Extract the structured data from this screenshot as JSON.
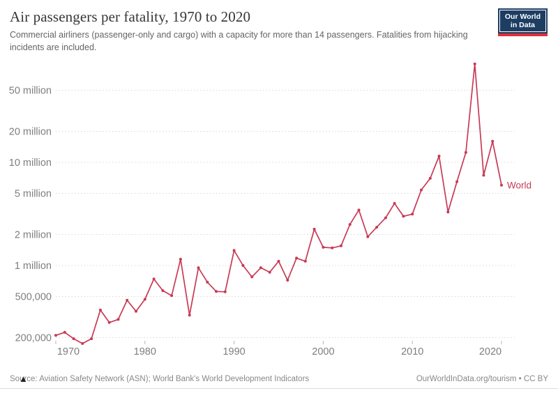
{
  "header": {
    "title": "Air passengers per fatality, 1970 to 2020",
    "subtitle": "Commercial airliners (passenger-only and cargo) with a capacity for more than 14 passengers. Fatalities from hijacking incidents are included.",
    "logo": {
      "line1": "Our World",
      "line2": "in Data",
      "bg_color": "#1d3d63",
      "accent_color": "#dc3039"
    }
  },
  "chart_data": {
    "type": "line",
    "title": "Air passengers per fatality, 1970 to 2020",
    "xlabel": "",
    "ylabel": "",
    "y_scale": "log",
    "grid": "dotted horizontal",
    "xlim": [
      1970,
      2020
    ],
    "ylim": [
      160000,
      100000000
    ],
    "x_ticks": [
      1970,
      1980,
      1990,
      2000,
      2010,
      2020
    ],
    "y_ticks": [
      {
        "value": 200000,
        "label": "200,000"
      },
      {
        "value": 500000,
        "label": "500,000"
      },
      {
        "value": 1000000,
        "label": "1 million"
      },
      {
        "value": 2000000,
        "label": "2 million"
      },
      {
        "value": 5000000,
        "label": "5 million"
      },
      {
        "value": 10000000,
        "label": "10 million"
      },
      {
        "value": 20000000,
        "label": "20 million"
      },
      {
        "value": 50000000,
        "label": "50 million"
      }
    ],
    "series": [
      {
        "name": "World",
        "color": "#c73a55",
        "x": [
          1970,
          1971,
          1972,
          1973,
          1974,
          1975,
          1976,
          1977,
          1978,
          1979,
          1980,
          1981,
          1982,
          1983,
          1984,
          1985,
          1986,
          1987,
          1988,
          1989,
          1990,
          1991,
          1992,
          1993,
          1994,
          1995,
          1996,
          1997,
          1998,
          1999,
          2000,
          2001,
          2002,
          2003,
          2004,
          2005,
          2006,
          2007,
          2008,
          2009,
          2010,
          2011,
          2012,
          2013,
          2014,
          2015,
          2016,
          2017,
          2018,
          2019,
          2020
        ],
        "values": [
          210000,
          225000,
          195000,
          175000,
          195000,
          370000,
          280000,
          300000,
          460000,
          360000,
          470000,
          740000,
          570000,
          510000,
          1150000,
          330000,
          950000,
          690000,
          560000,
          555000,
          1400000,
          1000000,
          775000,
          950000,
          860000,
          1100000,
          720000,
          1180000,
          1100000,
          2250000,
          1500000,
          1480000,
          1550000,
          2500000,
          3450000,
          1900000,
          2350000,
          2900000,
          4000000,
          3000000,
          3150000,
          5400000,
          7000000,
          11500000,
          3300000,
          6500000,
          12500000,
          90000000,
          7500000,
          16000000,
          6000000
        ]
      }
    ],
    "legend_position": "end-of-line label"
  },
  "footer": {
    "source": "Source: Aviation Safety Network (ASN); World Bank's World Development Indicators",
    "attribution": "OurWorldInData.org/tourism • CC BY"
  }
}
